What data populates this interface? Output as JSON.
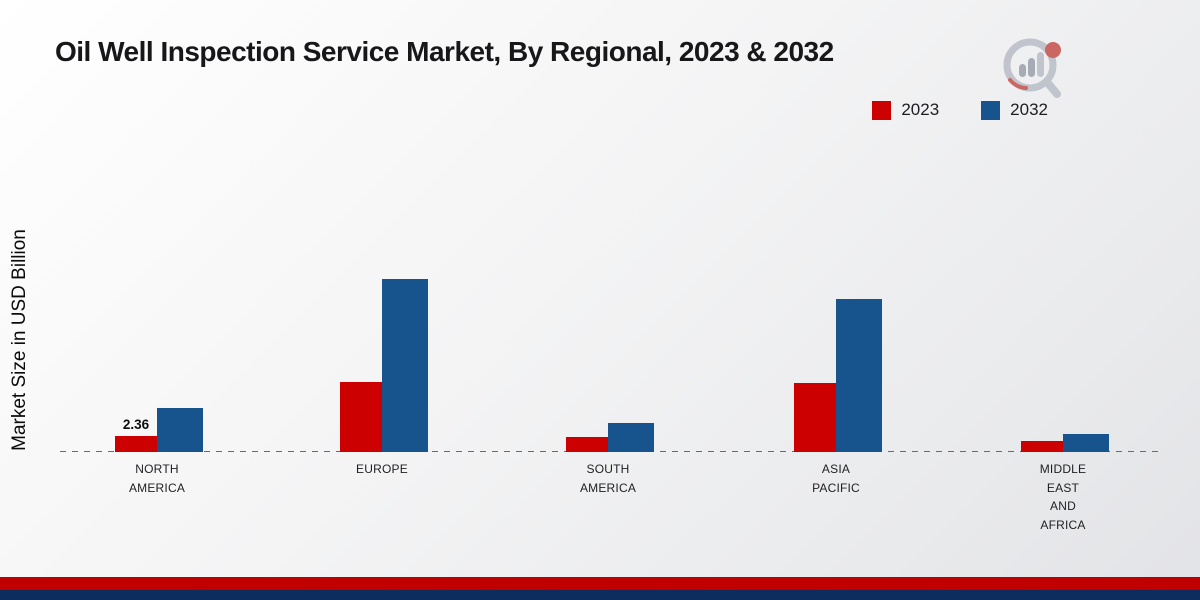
{
  "chart_data": {
    "type": "bar",
    "title": "Oil Well Inspection Service Market, By Regional, 2023 & 2032",
    "ylabel": "Market Size in USD Billion",
    "categories": [
      "NORTH\nAMERICA",
      "EUROPE",
      "SOUTH\nAMERICA",
      "ASIA\nPACIFIC",
      "MIDDLE\nEAST\nAND\nAFRICA"
    ],
    "series": [
      {
        "name": "2023",
        "color": "#cc0000",
        "values": [
          2.36,
          10.3,
          2.2,
          10.2,
          1.6
        ]
      },
      {
        "name": "2032",
        "color": "#17538d",
        "values": [
          6.5,
          25.5,
          4.3,
          22.5,
          2.7
        ]
      }
    ],
    "bar_labels": [
      {
        "series_index": 0,
        "category_index": 0,
        "text": "2.36"
      }
    ],
    "ylim": [
      0,
      27
    ],
    "grid": "zero-baseline-dashed-only",
    "legend_position": "top-right",
    "units": "USD Billion"
  },
  "footer": {
    "red_band_color": "#c00000",
    "navy_band_color": "#0d2d5e"
  }
}
